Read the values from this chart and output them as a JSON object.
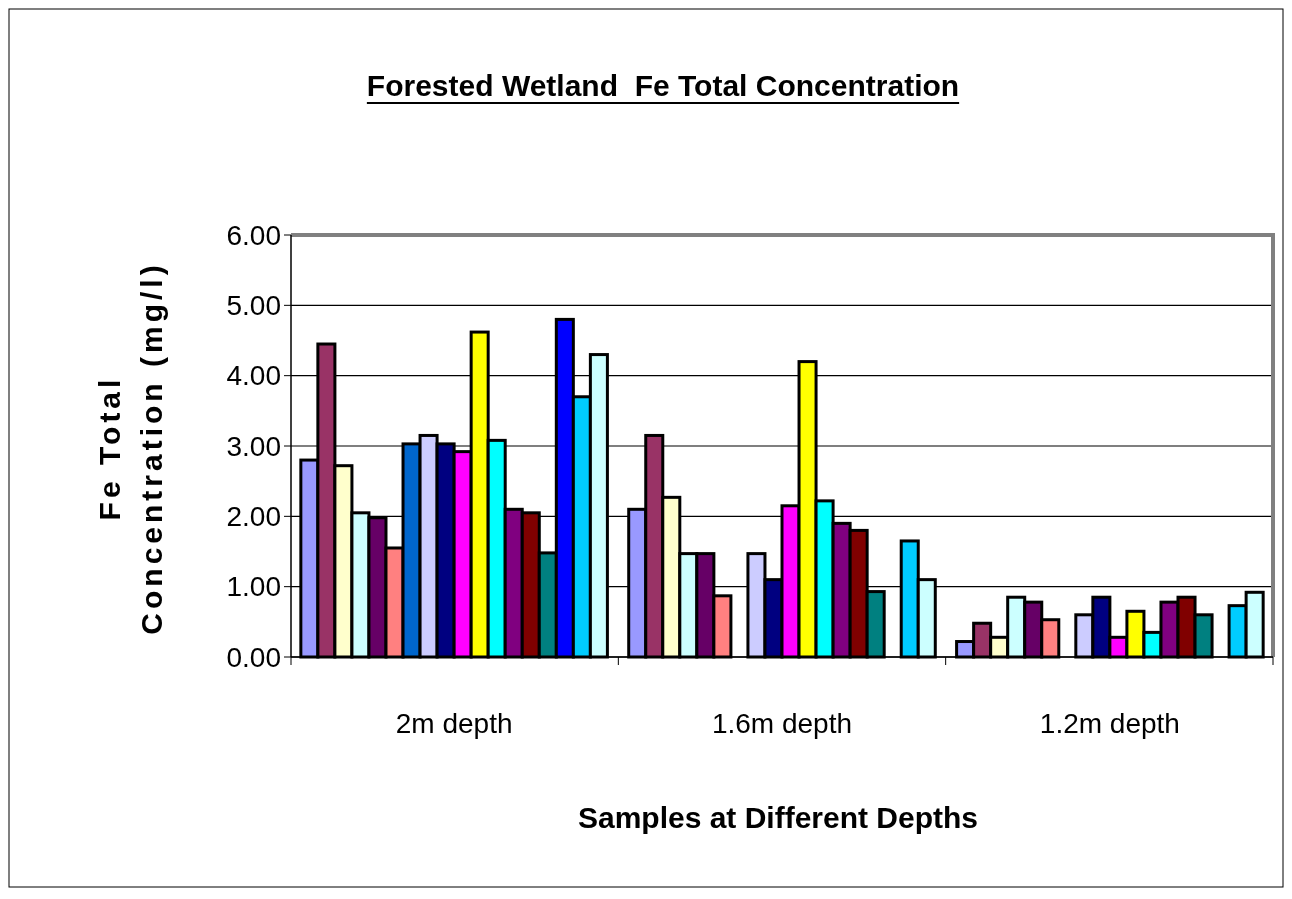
{
  "chart_data": {
    "type": "bar",
    "title": "Forested Wetland  Fe Total Concentration",
    "xlabel": "Samples at Different Depths",
    "ylabel": "Fe Total\nConcentration (mg/l)",
    "categories": [
      "2m depth",
      "1.6m depth",
      "1.2m depth"
    ],
    "ylim": [
      0,
      6
    ],
    "yticks": [
      {
        "value": 0,
        "label": "0.00"
      },
      {
        "value": 1,
        "label": "1.00"
      },
      {
        "value": 2,
        "label": "2.00"
      },
      {
        "value": 3,
        "label": "3.00"
      },
      {
        "value": 4,
        "label": "4.00"
      },
      {
        "value": 5,
        "label": "5.00"
      },
      {
        "value": 6,
        "label": "6.00"
      }
    ],
    "grid": "y",
    "series": [
      {
        "color": "#9999ff",
        "values": [
          2.8,
          2.1,
          0.22
        ]
      },
      {
        "color": "#993366",
        "values": [
          4.45,
          3.15,
          0.48
        ]
      },
      {
        "color": "#ffffcc",
        "values": [
          2.72,
          2.27,
          0.28
        ]
      },
      {
        "color": "#ccffff",
        "values": [
          2.05,
          1.47,
          0.85
        ]
      },
      {
        "color": "#660066",
        "values": [
          1.98,
          1.47,
          0.78
        ]
      },
      {
        "color": "#ff8080",
        "values": [
          1.55,
          0.87,
          0.53
        ]
      },
      {
        "color": "#0066cc",
        "values": [
          3.03,
          null,
          null
        ]
      },
      {
        "color": "#ccccff",
        "values": [
          3.15,
          1.47,
          0.6
        ]
      },
      {
        "color": "#000080",
        "values": [
          3.03,
          1.1,
          0.85
        ]
      },
      {
        "color": "#ff00ff",
        "values": [
          2.92,
          2.15,
          0.28
        ]
      },
      {
        "color": "#ffff00",
        "values": [
          4.62,
          4.2,
          0.65
        ]
      },
      {
        "color": "#00ffff",
        "values": [
          3.08,
          2.22,
          0.35
        ]
      },
      {
        "color": "#800080",
        "values": [
          2.1,
          1.9,
          0.78
        ]
      },
      {
        "color": "#800000",
        "values": [
          2.05,
          1.8,
          0.85
        ]
      },
      {
        "color": "#008080",
        "values": [
          1.48,
          0.93,
          0.6
        ]
      },
      {
        "color": "#0000ff",
        "values": [
          4.8,
          null,
          null
        ]
      },
      {
        "color": "#00ccff",
        "values": [
          3.7,
          1.65,
          0.73
        ]
      },
      {
        "color": "#ccffff",
        "values": [
          4.3,
          1.1,
          0.92
        ]
      }
    ]
  }
}
